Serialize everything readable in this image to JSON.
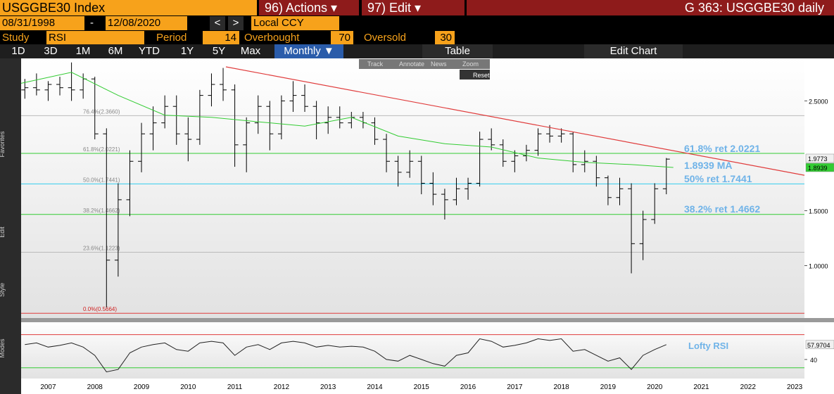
{
  "header": {
    "ticker": "USGGBE30 Index",
    "actions": "96) Actions ▾",
    "edit": "97) Edit ▾",
    "title": "G 363: USGGBE30 daily"
  },
  "range": {
    "start": "08/31/1998",
    "dash": "-",
    "end": "12/08/2020",
    "prev": "<",
    "next": ">",
    "currency": "Local CCY"
  },
  "study": {
    "study_label": "Study",
    "study": "RSI",
    "period_label": "Period",
    "period": 14,
    "overbought_label": "Overbought",
    "overbought": 70,
    "oversold_label": "Oversold",
    "oversold": 30
  },
  "periods": [
    "1D",
    "3D",
    "1M",
    "6M",
    "YTD",
    "1Y",
    "5Y",
    "Max"
  ],
  "frequency": "Monthly ▼",
  "table": "Table",
  "edit_chart": "Edit Chart",
  "tools": [
    "Track",
    "Annotate",
    "News",
    "Zoom"
  ],
  "reset": "Reset",
  "side_labels": [
    "Favorites",
    "Edit",
    "Style",
    "Modes"
  ],
  "chart_data": [
    {
      "type": "ohlc",
      "color": "#000000",
      "x": [
        2007,
        2007.25,
        2007.5,
        2007.75,
        2008,
        2008.25,
        2008.5,
        2008.75,
        2009,
        2009.25,
        2009.5,
        2009.75,
        2010,
        2010.25,
        2010.5,
        2010.75,
        2011,
        2011.25,
        2011.5,
        2011.75,
        2012,
        2012.25,
        2012.5,
        2012.75,
        2013,
        2013.25,
        2013.5,
        2013.75,
        2014,
        2014.25,
        2014.5,
        2014.75,
        2015,
        2015.25,
        2015.5,
        2015.75,
        2016,
        2016.25,
        2016.5,
        2016.75,
        2017,
        2017.25,
        2017.5,
        2017.75,
        2018,
        2018.25,
        2018.5,
        2018.75,
        2019,
        2019.25,
        2019.5,
        2019.75,
        2020,
        2020.25,
        2020.5,
        2020.75
      ],
      "open": [
        2.6,
        2.62,
        2.6,
        2.65,
        2.62,
        2.6,
        2.7,
        2.2,
        1.05,
        1.6,
        1.95,
        2.2,
        2.3,
        2.45,
        2.2,
        2.15,
        2.55,
        2.65,
        2.6,
        2.1,
        2.3,
        2.45,
        2.2,
        2.5,
        2.55,
        2.45,
        2.3,
        2.35,
        2.3,
        2.35,
        2.3,
        2.15,
        1.95,
        1.85,
        1.95,
        1.75,
        1.65,
        1.6,
        1.7,
        1.75,
        2.15,
        2.1,
        1.95,
        2.0,
        2.05,
        2.2,
        2.18,
        2.2,
        1.92,
        1.95,
        1.8,
        1.62,
        1.7,
        1.2,
        1.42,
        1.7
      ],
      "high": [
        2.7,
        2.75,
        2.68,
        2.72,
        2.85,
        2.75,
        2.72,
        2.25,
        1.75,
        2.05,
        2.3,
        2.45,
        2.55,
        2.55,
        2.35,
        2.6,
        2.75,
        2.8,
        2.65,
        2.35,
        2.55,
        2.5,
        2.55,
        2.68,
        2.65,
        2.5,
        2.45,
        2.45,
        2.4,
        2.4,
        2.35,
        2.2,
        2.0,
        2.05,
        2.0,
        1.85,
        1.7,
        1.8,
        1.8,
        2.22,
        2.25,
        2.15,
        2.05,
        2.1,
        2.25,
        2.28,
        2.25,
        2.22,
        2.05,
        2.0,
        1.82,
        1.8,
        1.75,
        1.5,
        1.75,
        1.98
      ],
      "low": [
        2.52,
        2.55,
        2.5,
        2.55,
        2.5,
        2.52,
        2.15,
        0.62,
        0.9,
        1.45,
        1.85,
        2.05,
        2.25,
        2.1,
        1.95,
        2.1,
        2.45,
        2.5,
        1.9,
        1.85,
        2.2,
        2.05,
        2.15,
        2.4,
        2.4,
        2.15,
        2.2,
        2.25,
        2.25,
        2.25,
        2.1,
        1.85,
        1.72,
        1.8,
        1.65,
        1.55,
        1.42,
        1.55,
        1.6,
        1.72,
        2.05,
        1.9,
        1.85,
        1.95,
        2.0,
        2.12,
        2.12,
        1.85,
        1.85,
        1.72,
        1.55,
        1.55,
        0.93,
        1.05,
        1.38,
        1.65
      ],
      "close": [
        2.62,
        2.6,
        2.65,
        2.62,
        2.6,
        2.7,
        2.2,
        1.05,
        1.6,
        1.95,
        2.2,
        2.3,
        2.45,
        2.2,
        2.15,
        2.55,
        2.65,
        2.6,
        2.1,
        2.3,
        2.45,
        2.2,
        2.5,
        2.55,
        2.45,
        2.3,
        2.35,
        2.3,
        2.35,
        2.3,
        2.15,
        1.95,
        1.85,
        1.95,
        1.75,
        1.65,
        1.6,
        1.7,
        1.75,
        2.15,
        2.1,
        1.95,
        2.0,
        2.05,
        2.2,
        2.18,
        2.2,
        1.92,
        1.95,
        1.8,
        1.62,
        1.7,
        1.2,
        1.42,
        1.7,
        1.97
      ],
      "ma": {
        "color": "#33cc33",
        "x": [
          2006.92,
          2008,
          2009,
          2010,
          2011,
          2012,
          2013,
          2014,
          2015,
          2016,
          2017,
          2018,
          2019,
          2020,
          2020.9
        ],
        "values": [
          2.66,
          2.76,
          2.55,
          2.37,
          2.35,
          2.31,
          2.27,
          2.35,
          2.18,
          2.11,
          2.08,
          1.98,
          1.94,
          1.92,
          1.8939
        ]
      },
      "trendline": {
        "color": "#e03c3c",
        "x": [
          2011.31,
          2023.71
        ],
        "values": [
          2.81,
          1.823
        ]
      },
      "levels": [
        {
          "label": "76.4%(2.3660)",
          "value": 2.366,
          "color": "#bbbbbb"
        },
        {
          "label": "61.8%(2.0221)",
          "value": 2.0221,
          "color": "#33cc33"
        },
        {
          "label": "50.0%(1.7441)",
          "value": 1.7441,
          "color": "#33ccee"
        },
        {
          "label": "38.2%(1.4662)",
          "value": 1.4662,
          "color": "#33cc33"
        },
        {
          "label": "23.6%(1.1223)",
          "value": 1.1223,
          "color": "#bbbbbb"
        },
        {
          "label": "0.0%(0.5664)",
          "value": 0.5664,
          "color": "#e03c3c"
        }
      ],
      "annotations": [
        "61.8% ret 2.0221",
        "1.8939 MA",
        "50% ret 1.7441",
        "38.2% ret 1.4662"
      ],
      "last_price": 1.9773,
      "last_ma": 1.8939,
      "xlim": [
        2006.92,
        2023.71
      ],
      "ylim": [
        0.523,
        2.887
      ],
      "yticks": [
        {
          "value": 2.5,
          "label": "2.5000"
        },
        {
          "value": 1.5,
          "label": "1.5000"
        },
        {
          "value": 1,
          "label": "1.0000"
        }
      ],
      "xticks": [
        {
          "value": 2007.5,
          "label": "2007"
        },
        {
          "value": 2008.5,
          "label": "2008"
        },
        {
          "value": 2009.5,
          "label": "2009"
        },
        {
          "value": 2010.5,
          "label": "2010"
        },
        {
          "value": 2011.5,
          "label": "2011"
        },
        {
          "value": 2012.5,
          "label": "2012"
        },
        {
          "value": 2013.5,
          "label": "2013"
        },
        {
          "value": 2014.5,
          "label": "2014"
        },
        {
          "value": 2015.5,
          "label": "2015"
        },
        {
          "value": 2016.5,
          "label": "2016"
        },
        {
          "value": 2017.5,
          "label": "2017"
        },
        {
          "value": 2018.5,
          "label": "2018"
        },
        {
          "value": 2019.5,
          "label": "2019"
        },
        {
          "value": 2020.5,
          "label": "2020"
        },
        {
          "value": 2021.5,
          "label": "2021"
        },
        {
          "value": 2022.5,
          "label": "2022"
        },
        {
          "value": 2023.5,
          "label": "2023"
        }
      ]
    },
    {
      "type": "line",
      "title": "Lofty RSI",
      "color": "#222222",
      "x": [
        2007,
        2007.25,
        2007.5,
        2007.75,
        2008,
        2008.25,
        2008.5,
        2008.75,
        2009,
        2009.25,
        2009.5,
        2009.75,
        2010,
        2010.25,
        2010.5,
        2010.75,
        2011,
        2011.25,
        2011.5,
        2011.75,
        2012,
        2012.25,
        2012.5,
        2012.75,
        2013,
        2013.25,
        2013.5,
        2013.75,
        2014,
        2014.25,
        2014.5,
        2014.75,
        2015,
        2015.25,
        2015.5,
        2015.75,
        2016,
        2016.25,
        2016.5,
        2016.75,
        2017,
        2017.25,
        2017.5,
        2017.75,
        2018,
        2018.25,
        2018.5,
        2018.75,
        2019,
        2019.25,
        2019.5,
        2019.75,
        2020,
        2020.25,
        2020.5,
        2020.75
      ],
      "values": [
        58,
        60,
        55,
        57,
        60,
        55,
        45,
        25,
        28,
        48,
        55,
        58,
        60,
        52,
        50,
        60,
        62,
        60,
        45,
        55,
        58,
        52,
        60,
        62,
        60,
        55,
        57,
        55,
        56,
        55,
        50,
        40,
        38,
        45,
        40,
        35,
        32,
        45,
        48,
        65,
        62,
        55,
        57,
        60,
        65,
        63,
        65,
        50,
        52,
        45,
        38,
        42,
        28,
        45,
        52,
        57.9704
      ],
      "last_value": 57.9704,
      "xlim": [
        2006.92,
        2023.71
      ],
      "ylim": [
        17,
        85
      ],
      "yticks": [
        40
      ]
    }
  ]
}
